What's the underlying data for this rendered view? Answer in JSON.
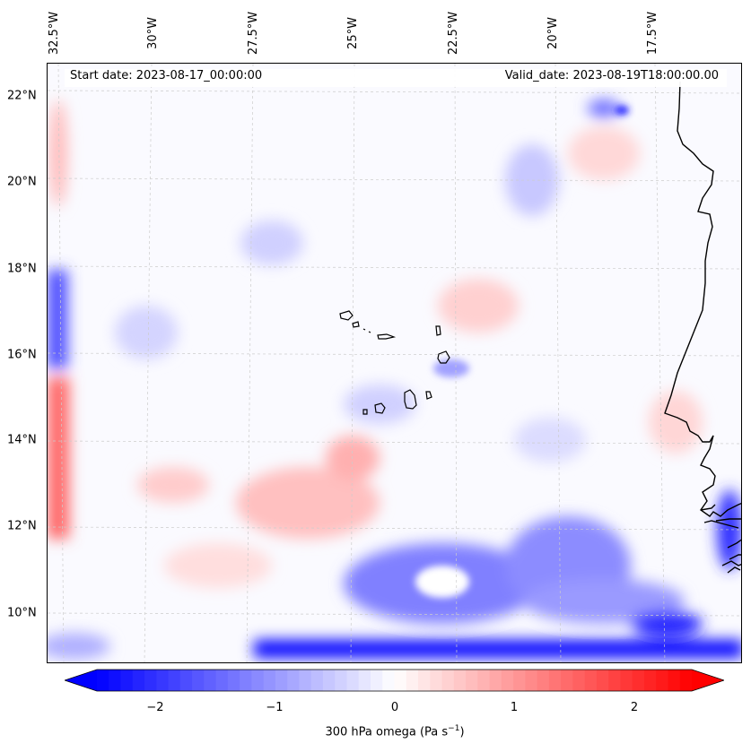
{
  "header": {
    "start_date": "Start date: 2023-08-17_00:00:00",
    "valid_date": "Valid_date: 2023-08-19T18:00:00.00"
  },
  "axes": {
    "longitude_labels": [
      "32.5°W",
      "30°W",
      "27.5°W",
      "25°W",
      "22.5°W",
      "20°W",
      "17.5°W"
    ],
    "latitude_labels": [
      "22°N",
      "20°N",
      "18°N",
      "16°N",
      "14°N",
      "12°N",
      "10°N"
    ]
  },
  "colorbar": {
    "ticks": [
      "−2",
      "−1",
      "0",
      "1",
      "2"
    ],
    "range": [
      -2.6,
      2.6
    ],
    "label_main": "300 hPa omega (Pa s",
    "label_sup": "−1",
    "label_end": ")",
    "colors": {
      "negative": "#0000ff",
      "zero": "#ffffff",
      "positive": "#ff0000"
    }
  },
  "map": {
    "features": [
      "Cape Verde islands",
      "West African coastline"
    ],
    "gridlines": true,
    "coast_color": "#000000"
  }
}
